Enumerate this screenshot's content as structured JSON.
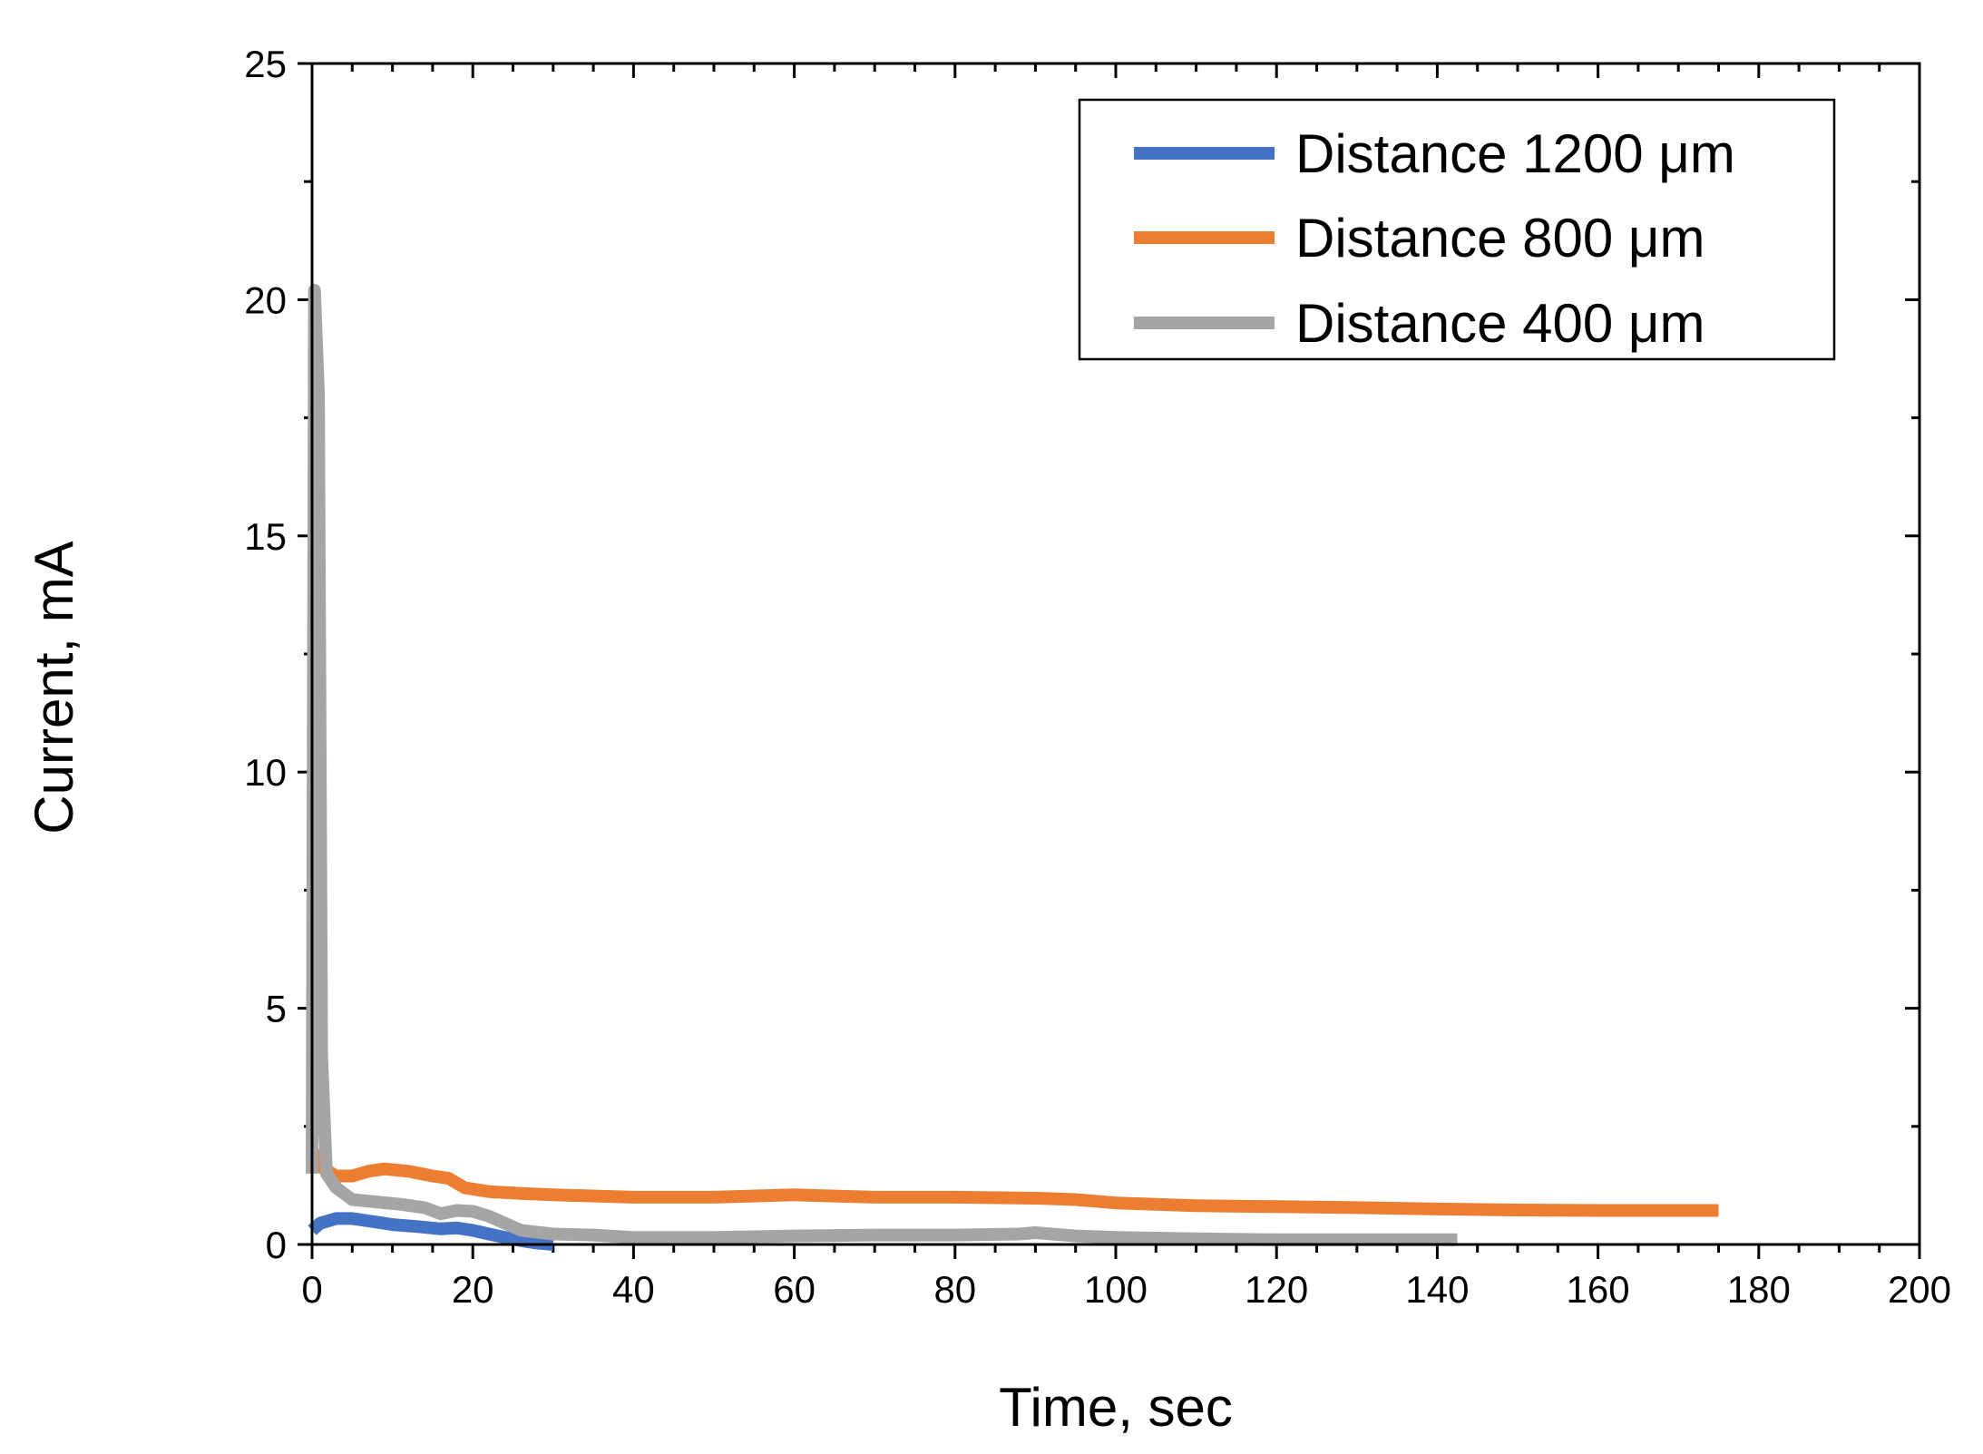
{
  "chart_data": {
    "type": "line",
    "title": "",
    "xlabel": "Time, sec",
    "ylabel": "Current, mA",
    "xlim": [
      0,
      200
    ],
    "ylim": [
      0,
      25
    ],
    "xticks": [
      0,
      20,
      40,
      60,
      80,
      100,
      120,
      140,
      160,
      180,
      200
    ],
    "yticks": [
      0,
      5,
      10,
      15,
      20,
      25
    ],
    "x_minor_step": 5,
    "y_minor_step": 2.5,
    "grid": false,
    "legend_position": "top-right",
    "series": [
      {
        "name": "Distance 1200 μm",
        "color": "#4472C4",
        "points": [
          [
            0,
            0.3
          ],
          [
            1,
            0.45
          ],
          [
            3,
            0.55
          ],
          [
            5,
            0.55
          ],
          [
            7,
            0.5
          ],
          [
            10,
            0.42
          ],
          [
            13,
            0.38
          ],
          [
            16,
            0.33
          ],
          [
            18,
            0.35
          ],
          [
            20,
            0.3
          ],
          [
            22,
            0.22
          ],
          [
            24,
            0.15
          ],
          [
            26,
            0.08
          ],
          [
            28,
            0.03
          ],
          [
            30,
            0.0
          ]
        ]
      },
      {
        "name": "Distance 800 μm",
        "color": "#ED7D31",
        "points": [
          [
            0,
            2.0
          ],
          [
            1,
            1.65
          ],
          [
            3,
            1.45
          ],
          [
            5,
            1.45
          ],
          [
            7,
            1.55
          ],
          [
            9,
            1.6
          ],
          [
            12,
            1.55
          ],
          [
            15,
            1.45
          ],
          [
            17,
            1.4
          ],
          [
            19,
            1.2
          ],
          [
            22,
            1.12
          ],
          [
            26,
            1.08
          ],
          [
            30,
            1.05
          ],
          [
            40,
            1.0
          ],
          [
            50,
            1.0
          ],
          [
            60,
            1.05
          ],
          [
            70,
            1.0
          ],
          [
            80,
            1.0
          ],
          [
            90,
            0.98
          ],
          [
            95,
            0.95
          ],
          [
            100,
            0.88
          ],
          [
            110,
            0.82
          ],
          [
            120,
            0.8
          ],
          [
            130,
            0.78
          ],
          [
            140,
            0.75
          ],
          [
            150,
            0.73
          ],
          [
            160,
            0.72
          ],
          [
            175,
            0.72
          ]
        ]
      },
      {
        "name": "Distance 400 μm",
        "color": "#A5A5A5",
        "points": [
          [
            0,
            1.5
          ],
          [
            0.3,
            20.2
          ],
          [
            0.8,
            18.0
          ],
          [
            1.2,
            4.0
          ],
          [
            1.8,
            1.5
          ],
          [
            3,
            1.2
          ],
          [
            5,
            0.95
          ],
          [
            8,
            0.9
          ],
          [
            11,
            0.85
          ],
          [
            14,
            0.78
          ],
          [
            16,
            0.65
          ],
          [
            18,
            0.72
          ],
          [
            20,
            0.7
          ],
          [
            22,
            0.6
          ],
          [
            24,
            0.45
          ],
          [
            26,
            0.3
          ],
          [
            30,
            0.22
          ],
          [
            35,
            0.2
          ],
          [
            40,
            0.15
          ],
          [
            50,
            0.15
          ],
          [
            60,
            0.18
          ],
          [
            70,
            0.2
          ],
          [
            80,
            0.2
          ],
          [
            88,
            0.22
          ],
          [
            90,
            0.25
          ],
          [
            95,
            0.18
          ],
          [
            100,
            0.15
          ],
          [
            110,
            0.12
          ],
          [
            120,
            0.1
          ],
          [
            130,
            0.1
          ],
          [
            142.5,
            0.1
          ]
        ]
      }
    ]
  }
}
